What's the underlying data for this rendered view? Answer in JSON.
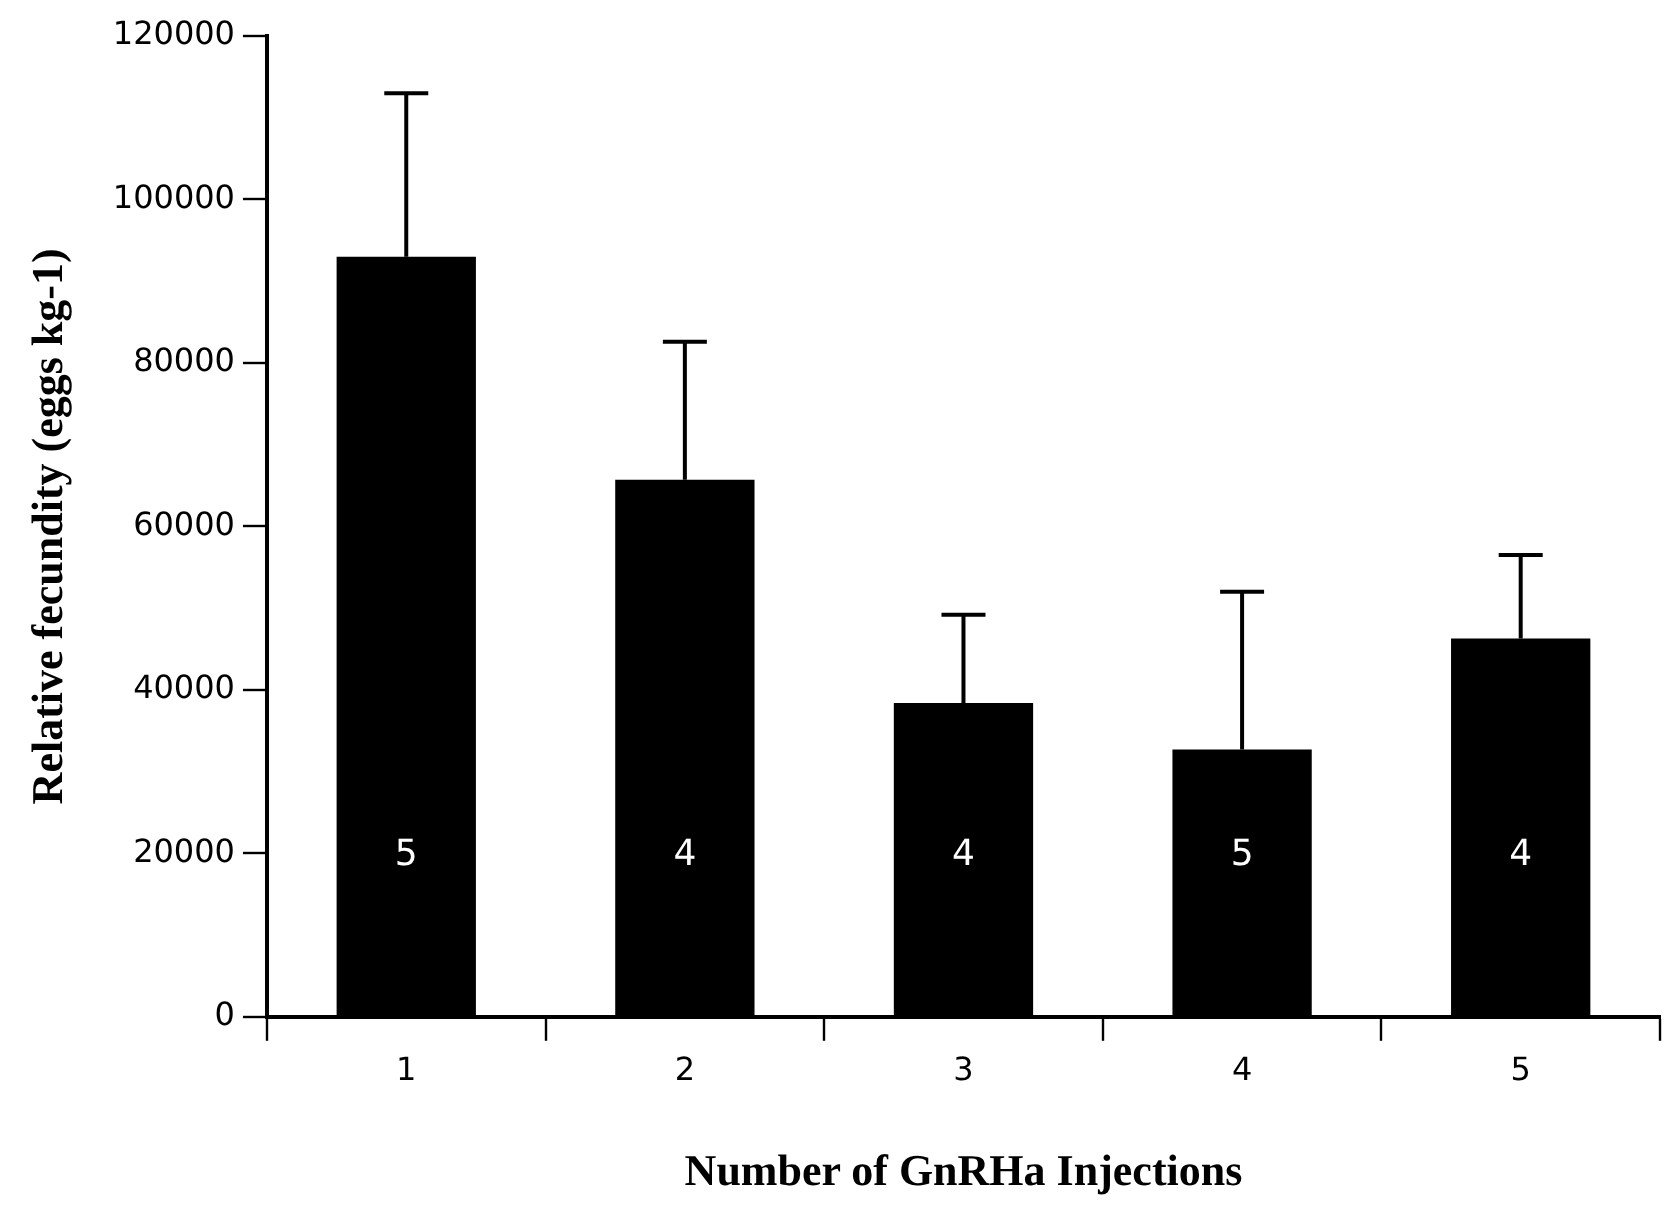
{
  "chart_data": {
    "type": "bar",
    "xlabel": "Number of GnRHa Injections",
    "ylabel": "Relative fecundity (eggs kg-1)",
    "categories": [
      "1",
      "2",
      "3",
      "4",
      "5"
    ],
    "values": [
      93000,
      65700,
      38400,
      32700,
      46300
    ],
    "errors": [
      [
        93000,
        113000
      ],
      [
        65700,
        82600
      ],
      [
        38400,
        49200
      ],
      [
        32700,
        52000
      ],
      [
        46300,
        56500
      ]
    ],
    "color": "#000000",
    "ylim": [
      0,
      120000
    ],
    "yticks": [
      0,
      20000,
      40000,
      60000,
      80000,
      100000,
      120000
    ],
    "grid": false,
    "legend": false,
    "annotations": [
      "5",
      "4",
      "4",
      "5",
      "4"
    ]
  }
}
